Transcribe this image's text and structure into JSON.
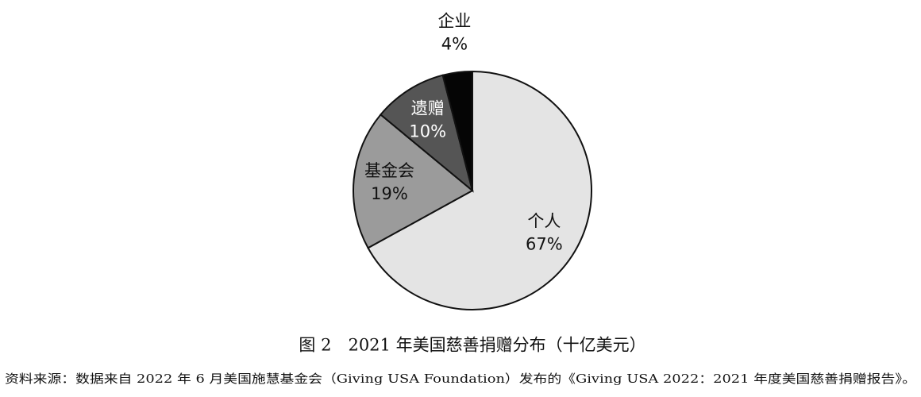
{
  "chart_data": {
    "type": "pie",
    "title": "图 2　2021 年美国慈善捐赠分布（十亿美元）",
    "source": "资料来源：数据来自 2022 年 6 月美国施慧基金会（Giving USA Foundation）发布的《Giving USA 2022：2021 年度美国慈善捐赠报告》。",
    "categories": [
      "个人",
      "基金会",
      "遗赠",
      "企业"
    ],
    "values": [
      67,
      19,
      10,
      4
    ],
    "value_labels": [
      "67%",
      "19%",
      "10%",
      "4%"
    ],
    "colors": [
      "#e4e4e4",
      "#9b9b9b",
      "#555555",
      "#050505"
    ]
  }
}
